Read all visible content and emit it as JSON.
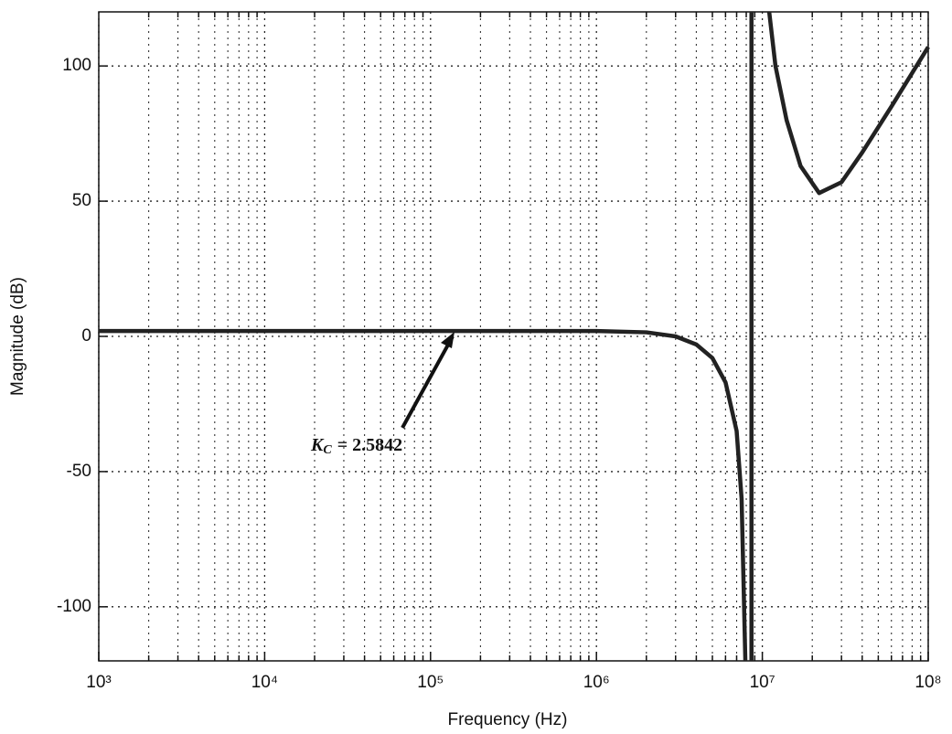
{
  "chart_data": {
    "type": "line",
    "xlabel": "Frequency (Hz)",
    "ylabel": "Magnitude (dB)",
    "x_log": true,
    "grid": true,
    "minor_grid": true,
    "color": "#222222",
    "xlim": [
      1000,
      100000000
    ],
    "xticks": [
      {
        "value": 1000,
        "label": "10³"
      },
      {
        "value": 10000,
        "label": "10⁴"
      },
      {
        "value": 100000,
        "label": "10⁵"
      },
      {
        "value": 1000000,
        "label": "10⁶"
      },
      {
        "value": 10000000,
        "label": "10⁷"
      },
      {
        "value": 100000000,
        "label": "10⁸"
      }
    ],
    "ylim": [
      -120,
      120
    ],
    "yticks": [
      -100,
      -50,
      0,
      50,
      100
    ],
    "x": [
      1000,
      10000,
      100000,
      1000000,
      2000000,
      3000000,
      4000000,
      5000000,
      6000000,
      7000000,
      7500000,
      7900000,
      8200000,
      8600000,
      8600000,
      9500000,
      11000000,
      12000000,
      14000000,
      17000000,
      22000000,
      30000000,
      40000000,
      60000000,
      100000000
    ],
    "values": [
      2,
      2,
      2,
      2,
      1.5,
      0,
      -3,
      -8,
      -17,
      -35,
      -60,
      -120,
      null,
      -120,
      120,
      null,
      120,
      100,
      80,
      63,
      53,
      57,
      68,
      85,
      107
    ],
    "annotation": {
      "symbol": "K",
      "subscript": "C",
      "text": "= 2.5842"
    }
  }
}
